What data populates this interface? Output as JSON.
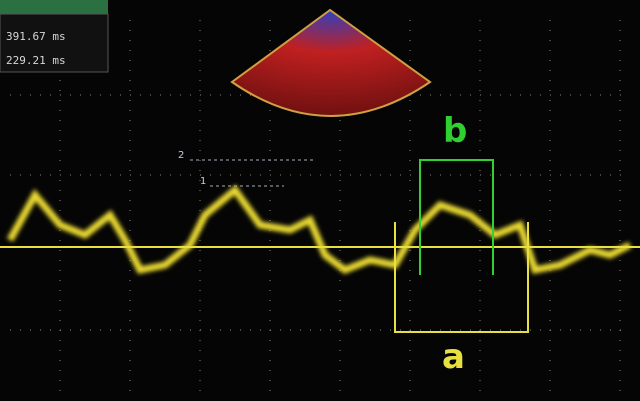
{
  "measurements": [
    "391.67 ms",
    "229.21 ms"
  ],
  "markers": [
    "1",
    "2"
  ],
  "labels": {
    "a": "a",
    "b": "b"
  }
}
